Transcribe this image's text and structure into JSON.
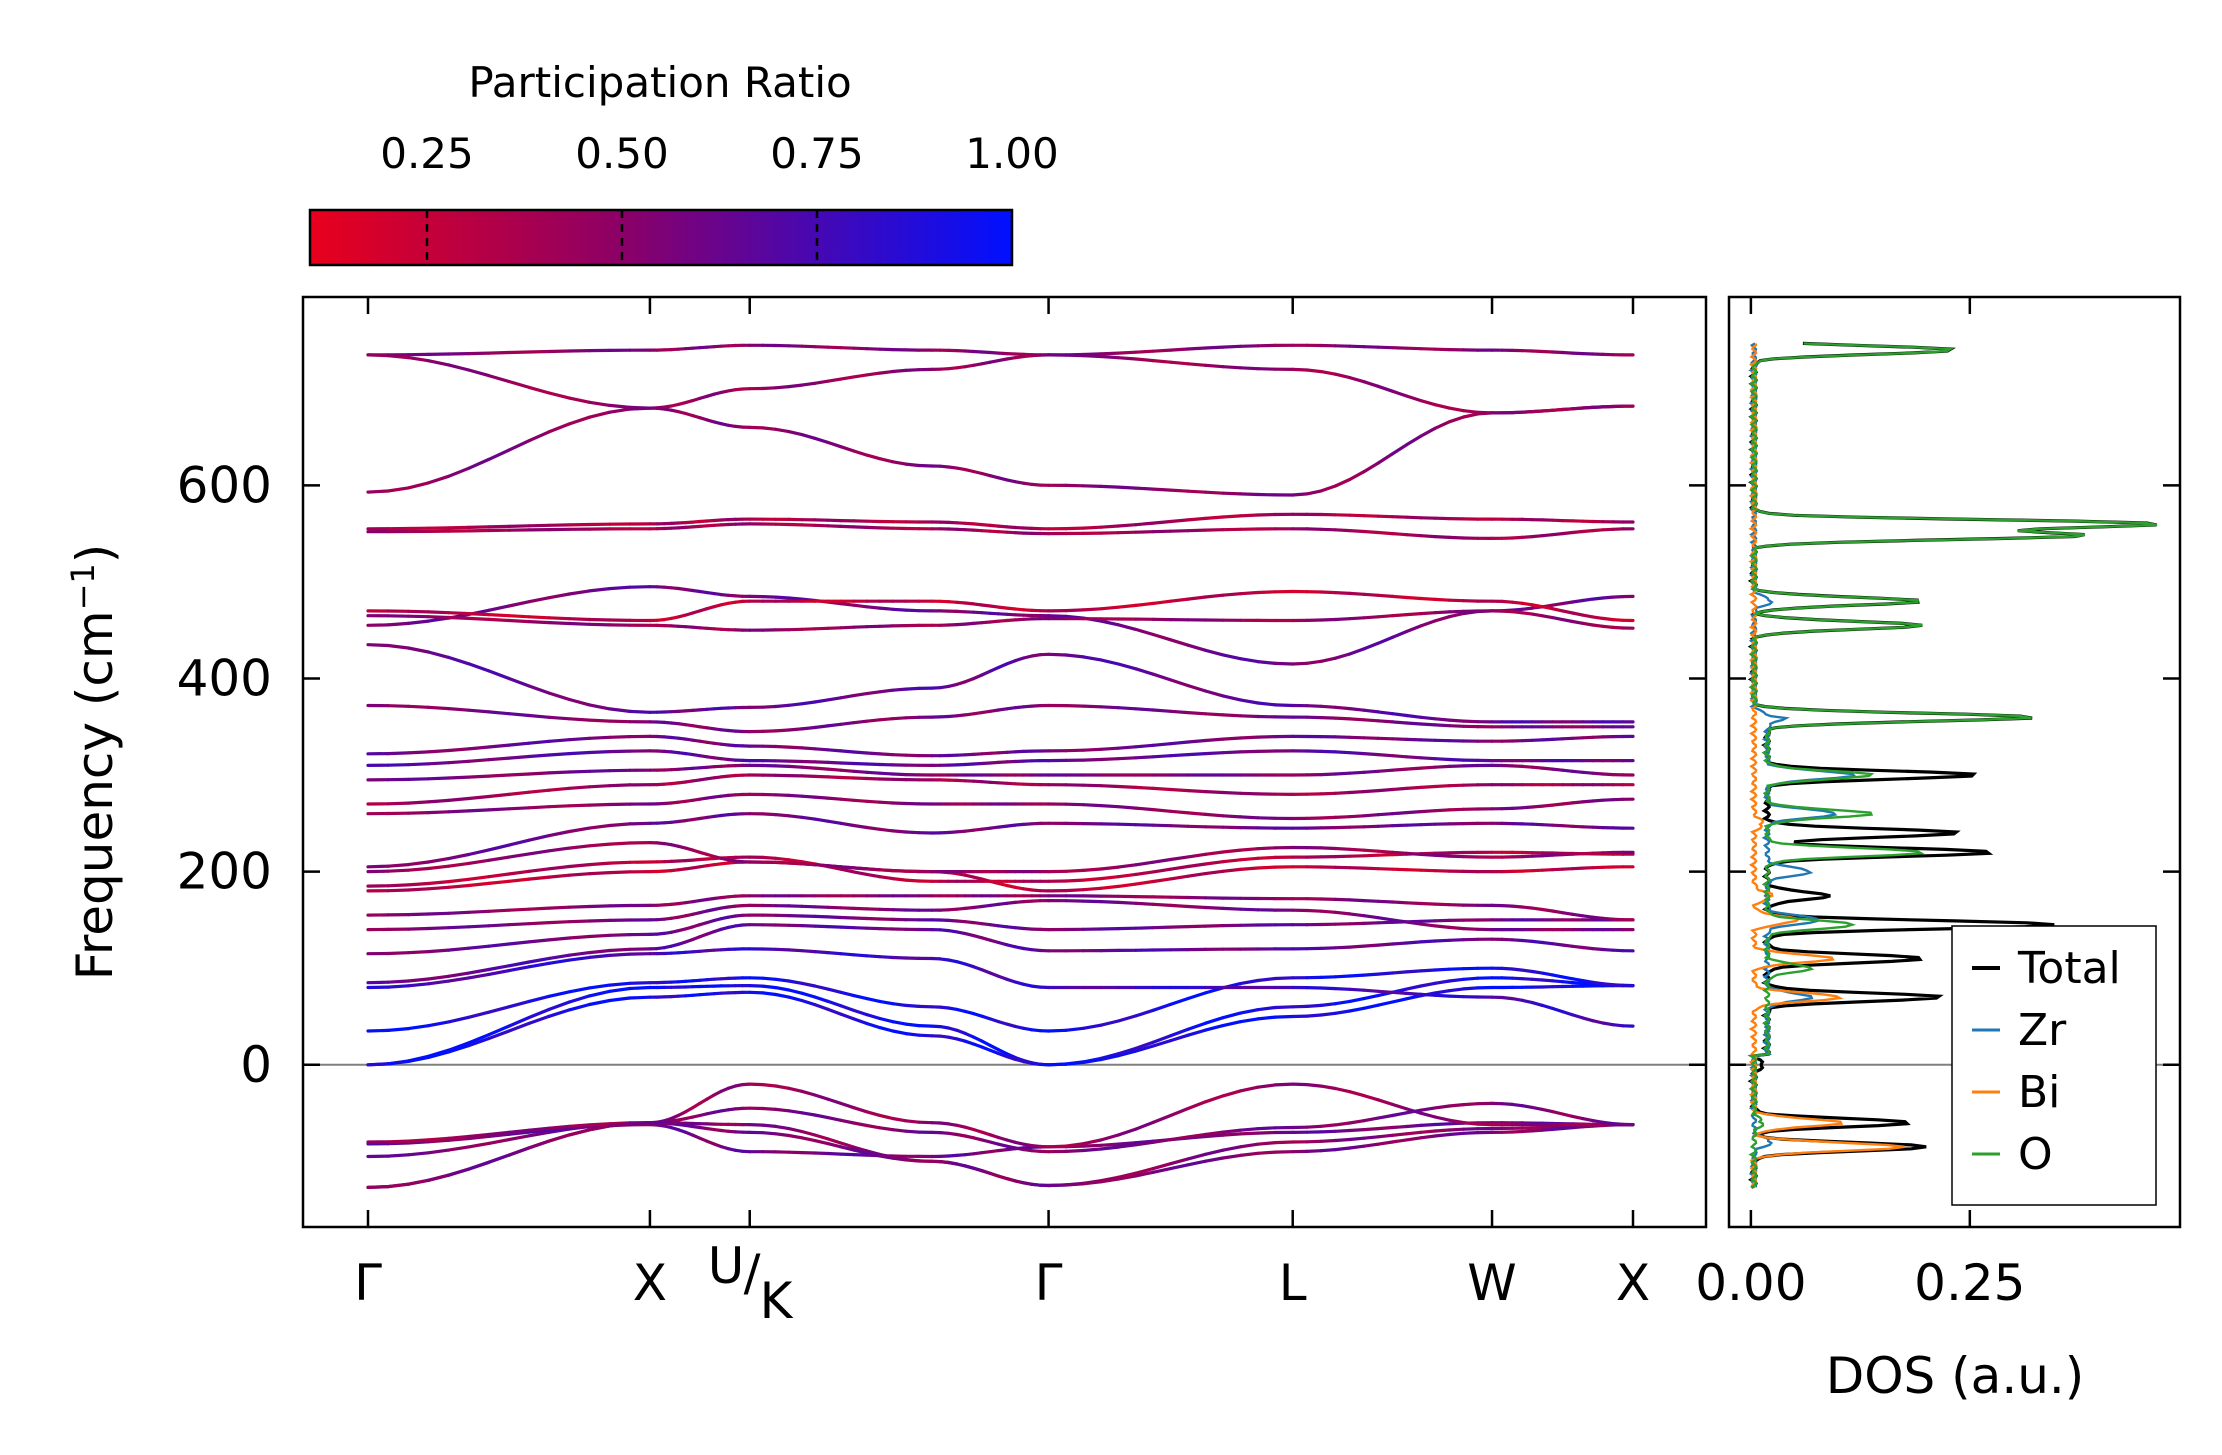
{
  "colors": {
    "cmap_low": "#e8001c",
    "cmap_mid": "#8a0068",
    "cmap_high": "#0010ff",
    "total": "#000000",
    "zr": "#1f77b4",
    "bi": "#ff7f0e",
    "o": "#2ca02c",
    "zero_line": "#808080"
  },
  "colorbar": {
    "label": "Participation Ratio",
    "tick_values": [
      0.25,
      0.5,
      0.75,
      1.0
    ],
    "tick_labels": [
      "0.25",
      "0.50",
      "0.75",
      "1.00"
    ],
    "range": [
      0.1,
      1.0
    ]
  },
  "chart_data": [
    {
      "type": "line",
      "name": "phonon-dispersion",
      "ylabel_main": "Frequency (cm",
      "ylabel_sup": "−1",
      "ylabel_close": ")",
      "ylim": [
        -168,
        795
      ],
      "yticks": [
        0,
        200,
        400,
        600
      ],
      "ytick_labels": [
        "0",
        "200",
        "400",
        "600"
      ],
      "path_segments": [
        {
          "from": "Γ",
          "to": "X",
          "length": 1.0
        },
        {
          "from": "X",
          "to": "U",
          "length": 0.354
        },
        {
          "from": "K",
          "to": "Γ",
          "length": 1.06
        },
        {
          "from": "Γ",
          "to": "L",
          "length": 0.866
        },
        {
          "from": "L",
          "to": "W",
          "length": 0.707
        },
        {
          "from": "W",
          "to": "X",
          "length": 0.5
        }
      ],
      "high_symmetry_positions": [
        0,
        1.0,
        1.354,
        2.414,
        3.28,
        3.987,
        4.487
      ],
      "xtick_labels": [
        "Γ",
        "X",
        "",
        "Γ",
        "L",
        "W",
        "X"
      ],
      "uk_label": {
        "top": "U",
        "bottom": "K"
      },
      "discontinuity_at": [
        1.354,
        3.28
      ],
      "bands": [
        {
          "pr": 0.45,
          "f": [
            -127,
            -60,
            -62,
            -100,
            -125,
            -80,
            -66,
            -62
          ],
          "x": [
            0,
            1.0,
            1.354,
            2.0,
            2.414,
            3.28,
            3.987,
            4.487
          ]
        },
        {
          "pr": 0.5,
          "f": [
            -95,
            -60,
            -70,
            -100,
            -125,
            -90,
            -70,
            -62
          ],
          "x": [
            0,
            1.0,
            1.354,
            2.0,
            2.414,
            3.28,
            3.987,
            4.487
          ]
        },
        {
          "pr": 0.55,
          "f": [
            -82,
            -62,
            -90,
            -95,
            -85,
            -70,
            -60,
            -62
          ],
          "x": [
            0,
            1.0,
            1.354,
            2.0,
            2.414,
            3.28,
            3.987,
            4.487
          ]
        },
        {
          "pr": 0.4,
          "f": [
            -80,
            -60,
            -20,
            -60,
            -85,
            -20,
            -62,
            -62
          ],
          "x": [
            0,
            1.0,
            1.354,
            2.0,
            2.414,
            3.28,
            3.987,
            4.487
          ]
        },
        {
          "pr": 0.5,
          "f": [
            -127,
            -60,
            -45,
            -70,
            -90,
            -65,
            -40,
            -62
          ],
          "x": [
            0,
            1.0,
            1.354,
            2.0,
            2.414,
            3.28,
            3.987,
            4.487
          ]
        },
        {
          "pr": 0.95,
          "f": [
            0,
            80,
            82,
            40,
            0,
            50,
            80,
            82
          ],
          "x": [
            0,
            1.0,
            1.354,
            2.0,
            2.414,
            3.28,
            3.987,
            4.487
          ]
        },
        {
          "pr": 0.9,
          "f": [
            0,
            70,
            75,
            30,
            0,
            60,
            90,
            82
          ],
          "x": [
            0,
            1.0,
            1.354,
            2.0,
            2.414,
            3.28,
            3.987,
            4.487
          ]
        },
        {
          "pr": 0.9,
          "f": [
            35,
            85,
            90,
            60,
            35,
            90,
            100,
            82
          ],
          "x": [
            0,
            1.0,
            1.354,
            2.0,
            2.414,
            3.28,
            3.987,
            4.487
          ]
        },
        {
          "pr": 0.75,
          "f": [
            80,
            115,
            120,
            110,
            80,
            80,
            70,
            40
          ],
          "x": [
            0,
            1.0,
            1.354,
            2.0,
            2.414,
            3.28,
            3.987,
            4.487
          ]
        },
        {
          "pr": 0.6,
          "f": [
            85,
            120,
            145,
            140,
            118,
            120,
            130,
            118
          ],
          "x": [
            0,
            1.0,
            1.354,
            2.0,
            2.414,
            3.28,
            3.987,
            4.487
          ]
        },
        {
          "pr": 0.55,
          "f": [
            115,
            135,
            155,
            150,
            140,
            145,
            150,
            150
          ],
          "x": [
            0,
            1.0,
            1.354,
            2.0,
            2.414,
            3.28,
            3.987,
            4.487
          ]
        },
        {
          "pr": 0.5,
          "f": [
            140,
            150,
            165,
            160,
            170,
            160,
            140,
            140
          ],
          "x": [
            0,
            1.0,
            1.354,
            2.0,
            2.414,
            3.28,
            3.987,
            4.487
          ]
        },
        {
          "pr": 0.45,
          "f": [
            155,
            165,
            175,
            175,
            175,
            172,
            165,
            150
          ],
          "x": [
            0,
            1.0,
            1.354,
            2.0,
            2.414,
            3.28,
            3.987,
            4.487
          ]
        },
        {
          "pr": 0.2,
          "f": [
            180,
            200,
            210,
            200,
            180,
            205,
            200,
            205
          ],
          "x": [
            0,
            1.0,
            1.354,
            2.0,
            2.414,
            3.28,
            3.987,
            4.487
          ]
        },
        {
          "pr": 0.25,
          "f": [
            185,
            210,
            215,
            190,
            190,
            215,
            220,
            218
          ],
          "x": [
            0,
            1.0,
            1.354,
            2.0,
            2.414,
            3.28,
            3.987,
            4.487
          ]
        },
        {
          "pr": 0.4,
          "f": [
            200,
            230,
            210,
            200,
            200,
            225,
            215,
            220
          ],
          "x": [
            0,
            1.0,
            1.354,
            2.0,
            2.414,
            3.28,
            3.987,
            4.487
          ]
        },
        {
          "pr": 0.55,
          "f": [
            205,
            250,
            260,
            240,
            250,
            245,
            250,
            245
          ],
          "x": [
            0,
            1.0,
            1.354,
            2.0,
            2.414,
            3.28,
            3.987,
            4.487
          ]
        },
        {
          "pr": 0.45,
          "f": [
            260,
            270,
            280,
            270,
            270,
            255,
            265,
            275
          ],
          "x": [
            0,
            1.0,
            1.354,
            2.0,
            2.414,
            3.28,
            3.987,
            4.487
          ]
        },
        {
          "pr": 0.35,
          "f": [
            270,
            290,
            300,
            295,
            290,
            280,
            290,
            290
          ],
          "x": [
            0,
            1.0,
            1.354,
            2.0,
            2.414,
            3.28,
            3.987,
            4.487
          ]
        },
        {
          "pr": 0.5,
          "f": [
            295,
            305,
            310,
            300,
            300,
            300,
            310,
            300
          ],
          "x": [
            0,
            1.0,
            1.354,
            2.0,
            2.414,
            3.28,
            3.987,
            4.487
          ]
        },
        {
          "pr": 0.6,
          "f": [
            310,
            325,
            315,
            310,
            315,
            325,
            315,
            315
          ],
          "x": [
            0,
            1.0,
            1.354,
            2.0,
            2.414,
            3.28,
            3.987,
            4.487
          ]
        },
        {
          "pr": 0.55,
          "f": [
            322,
            340,
            330,
            320,
            325,
            340,
            335,
            340
          ],
          "x": [
            0,
            1.0,
            1.354,
            2.0,
            2.414,
            3.28,
            3.987,
            4.487
          ]
        },
        {
          "pr": 0.5,
          "f": [
            372,
            355,
            345,
            360,
            372,
            360,
            350,
            350
          ],
          "x": [
            0,
            1.0,
            1.354,
            2.0,
            2.414,
            3.28,
            3.987,
            4.487
          ]
        },
        {
          "pr": 0.6,
          "f": [
            435,
            365,
            370,
            390,
            425,
            372,
            355,
            355
          ],
          "x": [
            0,
            1.0,
            1.354,
            2.0,
            2.414,
            3.28,
            3.987,
            4.487
          ]
        },
        {
          "pr": 0.55,
          "f": [
            455,
            495,
            485,
            470,
            465,
            415,
            470,
            485
          ],
          "x": [
            0,
            1.0,
            1.354,
            2.0,
            2.414,
            3.28,
            3.987,
            4.487
          ]
        },
        {
          "pr": 0.2,
          "f": [
            470,
            460,
            480,
            480,
            470,
            490,
            480,
            460
          ],
          "x": [
            0,
            1.0,
            1.354,
            2.0,
            2.414,
            3.28,
            3.987,
            4.487
          ]
        },
        {
          "pr": 0.4,
          "f": [
            465,
            455,
            450,
            455,
            462,
            460,
            470,
            452
          ],
          "x": [
            0,
            1.0,
            1.354,
            2.0,
            2.414,
            3.28,
            3.987,
            4.487
          ]
        },
        {
          "pr": 0.35,
          "f": [
            552,
            555,
            560,
            555,
            550,
            555,
            545,
            555
          ],
          "x": [
            0,
            1.0,
            1.354,
            2.0,
            2.414,
            3.28,
            3.987,
            4.487
          ]
        },
        {
          "pr": 0.3,
          "f": [
            555,
            560,
            565,
            562,
            555,
            570,
            565,
            562
          ],
          "x": [
            0,
            1.0,
            1.354,
            2.0,
            2.414,
            3.28,
            3.987,
            4.487
          ]
        },
        {
          "pr": 0.45,
          "f": [
            593,
            680,
            660,
            620,
            600,
            590,
            675,
            682
          ],
          "x": [
            0,
            1.0,
            1.354,
            2.0,
            2.414,
            3.28,
            3.987,
            4.487
          ]
        },
        {
          "pr": 0.4,
          "f": [
            735,
            680,
            700,
            720,
            735,
            720,
            675,
            682
          ],
          "x": [
            0,
            1.0,
            1.354,
            2.0,
            2.414,
            3.28,
            3.987,
            4.487
          ]
        },
        {
          "pr": 0.45,
          "f": [
            735,
            740,
            745,
            740,
            735,
            745,
            740,
            735
          ],
          "x": [
            0,
            1.0,
            1.354,
            2.0,
            2.414,
            3.28,
            3.987,
            4.487
          ]
        }
      ]
    },
    {
      "type": "line",
      "name": "phonon-dos",
      "xlabel": "DOS (a.u.)",
      "xlim": [
        -0.025,
        0.49
      ],
      "xticks": [
        0.0,
        0.25
      ],
      "xtick_labels": [
        "0.00",
        "0.25"
      ],
      "ylim": [
        -168,
        795
      ],
      "legend_position": "lower-right",
      "series": [
        {
          "name": "Total",
          "color_key": "total",
          "peaks": [
            [
              -85,
              0.2
            ],
            [
              -60,
              0.18
            ],
            [
              0,
              0.01
            ],
            [
              70,
              0.2
            ],
            [
              110,
              0.18
            ],
            [
              145,
              0.33
            ],
            [
              175,
              0.07
            ],
            [
              220,
              0.26
            ],
            [
              240,
              0.22
            ],
            [
              300,
              0.24
            ],
            [
              360,
              0.31
            ],
            [
              455,
              0.19
            ],
            [
              480,
              0.19
            ],
            [
              548,
              0.37
            ],
            [
              560,
              0.46
            ],
            [
              740,
              0.23
            ]
          ]
        },
        {
          "name": "Zr",
          "color_key": "zr",
          "peaks": [
            [
              -80,
              0.02
            ],
            [
              0,
              0.0
            ],
            [
              70,
              0.05
            ],
            [
              150,
              0.06
            ],
            [
              200,
              0.05
            ],
            [
              260,
              0.08
            ],
            [
              300,
              0.1
            ],
            [
              360,
              0.02
            ],
            [
              480,
              0.02
            ]
          ]
        },
        {
          "name": "Bi",
          "color_key": "bi",
          "peaks": [
            [
              -85,
              0.17
            ],
            [
              -60,
              0.1
            ],
            [
              0,
              0.0
            ],
            [
              70,
              0.1
            ],
            [
              110,
              0.09
            ],
            [
              150,
              0.05
            ],
            [
              175,
              0.02
            ],
            [
              250,
              0.01
            ]
          ]
        },
        {
          "name": "O",
          "color_key": "o",
          "peaks": [
            [
              -60,
              0.01
            ],
            [
              0,
              0.0
            ],
            [
              100,
              0.05
            ],
            [
              145,
              0.1
            ],
            [
              220,
              0.18
            ],
            [
              260,
              0.12
            ],
            [
              300,
              0.12
            ],
            [
              360,
              0.31
            ],
            [
              455,
              0.19
            ],
            [
              480,
              0.19
            ],
            [
              548,
              0.37
            ],
            [
              560,
              0.46
            ],
            [
              740,
              0.23
            ]
          ]
        }
      ]
    }
  ]
}
